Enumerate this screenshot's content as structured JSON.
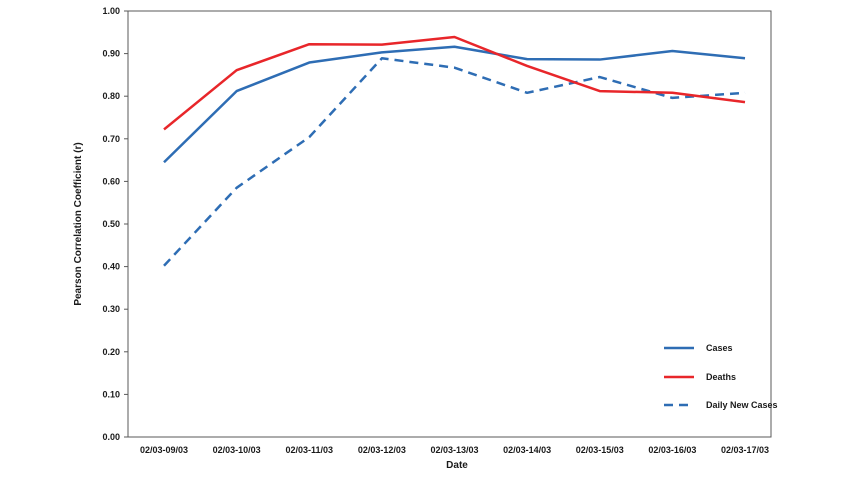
{
  "chart_data": {
    "type": "line",
    "title": "",
    "xlabel": "Date",
    "ylabel": "Pearson Correlation Coefficient (r)",
    "categories": [
      "02/03-09/03",
      "02/03-10/03",
      "02/03-11/03",
      "02/03-12/03",
      "02/03-13/03",
      "02/03-14/03",
      "02/03-15/03",
      "02/03-16/03",
      "02/03-17/03"
    ],
    "ylim": [
      0,
      1
    ],
    "yticks": [
      "0.00",
      "0.10",
      "0.20",
      "0.30",
      "0.40",
      "0.50",
      "0.60",
      "0.70",
      "0.80",
      "0.90",
      "1.00"
    ],
    "grid": false,
    "legend_position": "bottom-right",
    "series": [
      {
        "name": "Cases",
        "color": "#2E6DB4",
        "dash": "solid",
        "values": [
          0.645,
          0.812,
          0.879,
          0.903,
          0.916,
          0.887,
          0.886,
          0.906,
          0.889
        ]
      },
      {
        "name": "Deaths",
        "color": "#E8262A",
        "dash": "solid",
        "values": [
          0.722,
          0.861,
          0.922,
          0.921,
          0.939,
          0.871,
          0.812,
          0.808,
          0.786
        ]
      },
      {
        "name": "Daily New Cases",
        "color": "#2E6DB4",
        "dash": "dashed",
        "values": [
          0.402,
          0.585,
          0.704,
          0.889,
          0.867,
          0.808,
          0.845,
          0.796,
          0.808
        ]
      }
    ]
  }
}
